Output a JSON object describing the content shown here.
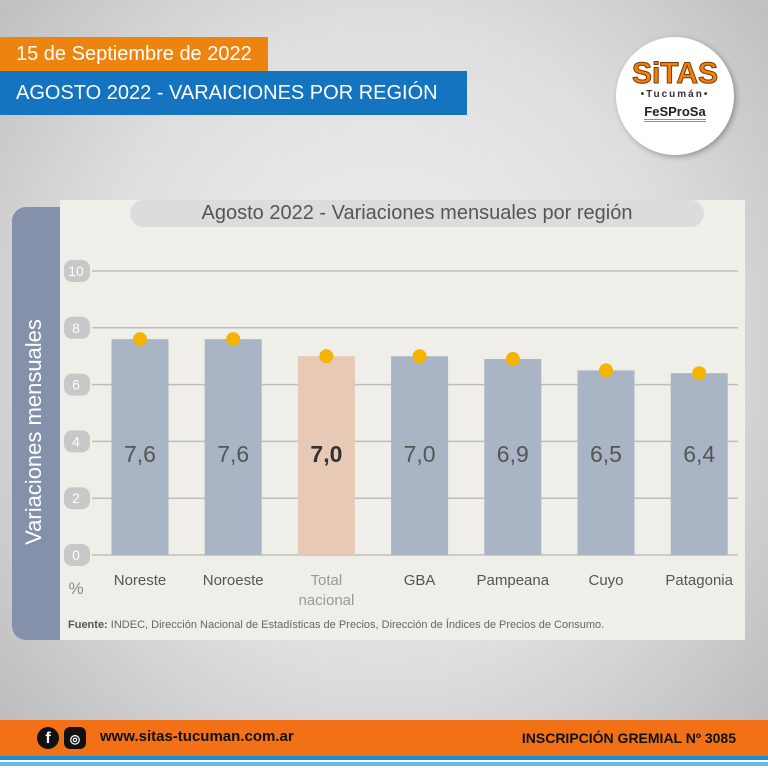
{
  "header": {
    "date": "15 de Septiembre  de 2022",
    "title": "AGOSTO 2022 - VARAICIONES POR REGIÓN"
  },
  "logo": {
    "name": "SiTAS",
    "sub": "•Tucumán•",
    "org": "FeSProSa"
  },
  "chart_data": {
    "type": "bar",
    "title": "Agosto 2022  - Variaciones mensuales por región",
    "ylabel": "Variaciones  mensuales",
    "yunit": "%",
    "ylim": [
      0,
      10
    ],
    "yticks": [
      "0",
      "2",
      "4",
      "6",
      "8",
      "10"
    ],
    "categories": [
      "Noreste",
      "Noroeste",
      "Total nacional",
      "GBA",
      "Pampeana",
      "Cuyo",
      "Patagonia"
    ],
    "values": [
      7.6,
      7.6,
      7.0,
      7.0,
      6.9,
      6.5,
      6.4
    ],
    "value_labels": [
      "7,6",
      "7,6",
      "7,0",
      "7,0",
      "6,9",
      "6,5",
      "6,4"
    ],
    "highlight": "Total nacional",
    "colors": {
      "bar": "#a9b5c5",
      "highlight": "#e8c9b6",
      "marker": "#f4b400"
    },
    "grid": true
  },
  "source": {
    "label": "Fuente:",
    "text": " INDEC, Dirección Nacional de Estadísticas de Precios, Dirección de Índices de Precios de Consumo."
  },
  "footer": {
    "website": "www.sitas-tucuman.com.ar",
    "registration": "INSCRIPCIÓN GREMIAL Nº 3085",
    "icons": [
      "facebook-icon",
      "instagram-icon"
    ]
  }
}
